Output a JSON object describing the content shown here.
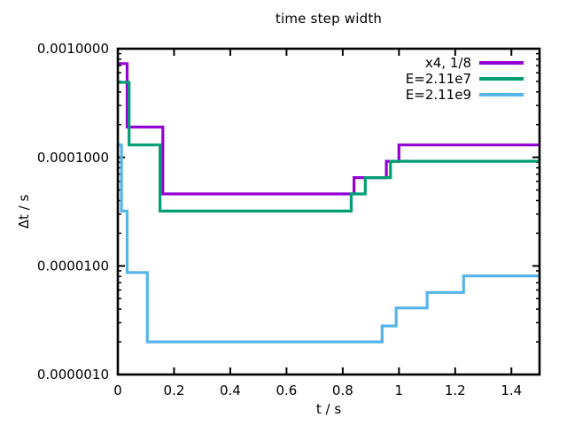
{
  "chart_data": {
    "type": "line",
    "line_style": "steps-post",
    "title": "time step width",
    "xlabel": "t / s",
    "ylabel": "Δt / s",
    "x_scale": "linear",
    "y_scale": "log",
    "xlim": [
      0,
      1.5
    ],
    "ylim": [
      1e-06,
      0.001
    ],
    "x_end": 1.5,
    "grid": false,
    "ticks_mirrored": true,
    "legend": {
      "position": "inside top right"
    },
    "x_ticks": {
      "values": [
        0,
        0.2,
        0.4,
        0.6,
        0.8,
        1,
        1.2,
        1.4
      ],
      "labels": [
        "0",
        "0.2",
        "0.4",
        "0.6",
        "0.8",
        "1",
        "1.2",
        "1.4"
      ]
    },
    "y_ticks": {
      "values": [
        0.001,
        0.0001,
        1e-05,
        1e-06
      ],
      "labels": [
        "0.0010000",
        "0.0001000",
        "0.0000100",
        "0.0000010"
      ]
    },
    "series": [
      {
        "name": "x4, 1/8",
        "color": "#9400d3",
        "points": [
          [
            0,
            0.00073
          ],
          [
            0.033,
            0.00019
          ],
          [
            0.16,
            4.6e-05
          ],
          [
            0.84,
            6.5e-05
          ],
          [
            0.955,
            9.2e-05
          ],
          [
            1.0,
            0.00013
          ]
        ]
      },
      {
        "name": "E=2.11e7",
        "color": "#009e73",
        "points": [
          [
            0,
            0.00049
          ],
          [
            0.04,
            0.00013
          ],
          [
            0.15,
            3.2e-05
          ],
          [
            0.83,
            4.6e-05
          ],
          [
            0.88,
            6.5e-05
          ],
          [
            0.97,
            9.2e-05
          ]
        ]
      },
      {
        "name": "E=2.11e9",
        "color": "#56b4e9",
        "points": [
          [
            0,
            0.00013
          ],
          [
            0.013,
            3.2e-05
          ],
          [
            0.033,
            8.7e-06
          ],
          [
            0.105,
            2e-06
          ],
          [
            0.94,
            2.8e-06
          ],
          [
            0.99,
            4.1e-06
          ],
          [
            1.1,
            5.7e-06
          ],
          [
            1.23,
            8.1e-06
          ]
        ]
      }
    ],
    "axis_color": "#000000",
    "background": "#ffffff"
  }
}
